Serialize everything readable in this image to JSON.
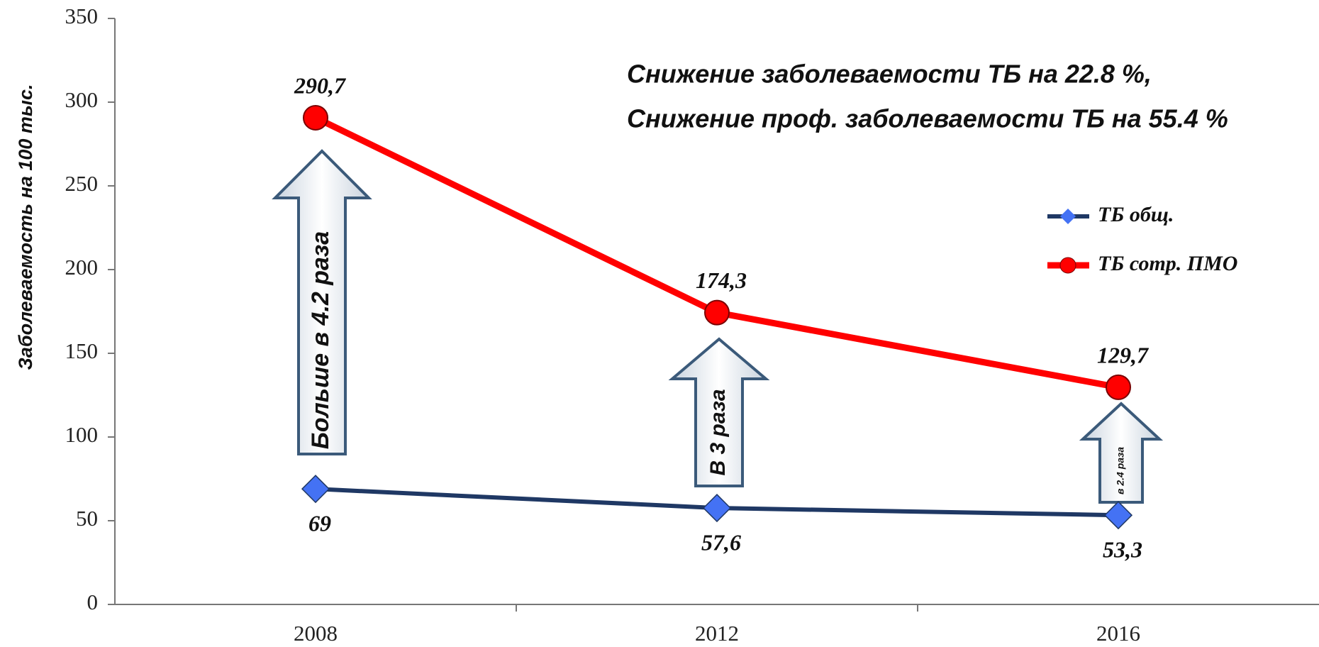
{
  "chart_data": {
    "type": "line",
    "y_label": "Заболеваемость на 100 тыс.",
    "categories": [
      "2008",
      "2012",
      "2016"
    ],
    "series": [
      {
        "name": "ТБ общ.",
        "color": "#1f3864",
        "marker_color": "#4472f4",
        "marker": "diamond",
        "values": [
          69,
          57.6,
          53.3
        ],
        "value_labels": [
          "69",
          "57,6",
          "53,3"
        ]
      },
      {
        "name": "ТБ сотр. ПМО",
        "color": "#ff0000",
        "marker_color": "#ff0000",
        "marker": "circle",
        "values": [
          290.7,
          174.3,
          129.7
        ],
        "value_labels": [
          "290,7",
          "174,3",
          "129,7"
        ]
      }
    ],
    "ylim": [
      0,
      350
    ],
    "yticks": [
      0,
      50,
      100,
      150,
      200,
      250,
      300,
      350
    ],
    "annotations": [
      "Снижение заболеваемости ТБ на  22.8 %,",
      "Снижение проф. заболеваемости ТБ на 55.4 %"
    ],
    "arrows": [
      "Больше в 4.2 раза",
      "В 3 раза",
      "в 2.4 раза"
    ]
  }
}
